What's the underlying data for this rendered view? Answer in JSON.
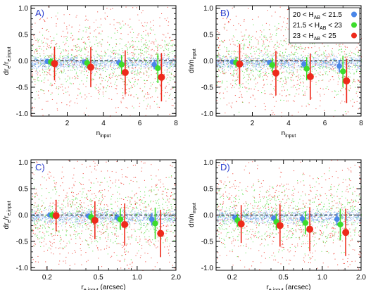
{
  "chart_data": [
    {
      "type": "scatter",
      "panel_label": "A)",
      "xscale": "linear",
      "xlim": [
        0,
        8
      ],
      "ylim": [
        -1.05,
        1.05
      ],
      "xticks": [
        2,
        4,
        6,
        8
      ],
      "xtick_labels": [
        "2",
        "4",
        "6",
        "8"
      ],
      "yticks": [
        -1.0,
        -0.5,
        0.0,
        0.5,
        1.0
      ],
      "ytick_labels": [
        "-1.0",
        "-0.5",
        "0.0",
        "0.5",
        "1.0"
      ],
      "xlabel": {
        "main": "n",
        "sub": "input",
        "tail": ""
      },
      "ylabel": {
        "main": "dr",
        "sub": "e",
        "mid": "/r",
        "sub2": "e,input"
      },
      "legend": false,
      "series": [
        {
          "key": "bright",
          "x": [
            0.9,
            2.95,
            4.85,
            6.8
          ],
          "y": [
            -0.01,
            -0.02,
            -0.03,
            -0.07
          ],
          "yerr": [
            0.03,
            0.04,
            0.06,
            0.09
          ]
        },
        {
          "key": "mid",
          "x": [
            1.1,
            3.1,
            5.0,
            7.0
          ],
          "y": [
            -0.02,
            -0.04,
            -0.07,
            -0.14
          ],
          "yerr": [
            0.08,
            0.1,
            0.18,
            0.28
          ]
        },
        {
          "key": "faint",
          "x": [
            1.3,
            3.3,
            5.2,
            7.2
          ],
          "y": [
            -0.05,
            -0.12,
            -0.22,
            -0.31
          ],
          "yerr": [
            0.32,
            0.38,
            0.42,
            0.46
          ]
        }
      ]
    },
    {
      "type": "scatter",
      "panel_label": "B)",
      "xscale": "linear",
      "xlim": [
        0,
        8
      ],
      "ylim": [
        -1.05,
        1.05
      ],
      "xticks": [
        2,
        4,
        6,
        8
      ],
      "xtick_labels": [
        "2",
        "4",
        "6",
        "8"
      ],
      "yticks": [
        -1.0,
        -0.5,
        0.0,
        0.5,
        1.0
      ],
      "ytick_labels": [
        "-1.0",
        "-0.5",
        "0.0",
        "0.5",
        "1.0"
      ],
      "xlabel": {
        "main": "n",
        "sub": "input",
        "tail": ""
      },
      "ylabel": {
        "main": "dn/n",
        "sub": "input",
        "mid": "",
        "sub2": ""
      },
      "legend": true,
      "series": [
        {
          "key": "bright",
          "x": [
            0.9,
            2.95,
            4.85,
            6.8
          ],
          "y": [
            -0.02,
            -0.03,
            -0.06,
            -0.1
          ],
          "yerr": [
            0.04,
            0.05,
            0.08,
            0.12
          ]
        },
        {
          "key": "mid",
          "x": [
            1.1,
            3.1,
            5.0,
            7.0
          ],
          "y": [
            -0.03,
            -0.08,
            -0.15,
            -0.2
          ],
          "yerr": [
            0.1,
            0.14,
            0.22,
            0.3
          ]
        },
        {
          "key": "faint",
          "x": [
            1.3,
            3.3,
            5.2,
            7.2
          ],
          "y": [
            -0.06,
            -0.23,
            -0.3,
            -0.38
          ],
          "yerr": [
            0.38,
            0.42,
            0.44,
            0.42
          ]
        }
      ]
    },
    {
      "type": "scatter",
      "panel_label": "C)",
      "xscale": "log",
      "xlim": [
        0.15,
        2.0
      ],
      "ylim": [
        -1.05,
        1.05
      ],
      "xticks": [
        0.2,
        0.5,
        1.0,
        2.0
      ],
      "xtick_labels": [
        "0.2",
        "0.5",
        "1.0",
        "2.0"
      ],
      "yticks": [
        -1.0,
        -0.5,
        0.0,
        0.5,
        1.0
      ],
      "ytick_labels": [
        "-1.0",
        "-0.5",
        "0.0",
        "0.5",
        "1.0"
      ],
      "xlabel": {
        "main": "r",
        "sub": "e,input",
        "tail": " (arcsec)"
      },
      "ylabel": {
        "main": "dr",
        "sub": "e",
        "mid": "/r",
        "sub2": "e,input"
      },
      "legend": false,
      "series": [
        {
          "key": "bright",
          "x": [
            0.21,
            0.42,
            0.7,
            1.3
          ],
          "y": [
            0.0,
            -0.02,
            -0.05,
            -0.08
          ],
          "yerr": [
            0.03,
            0.05,
            0.07,
            0.12
          ]
        },
        {
          "key": "mid",
          "x": [
            0.22,
            0.44,
            0.74,
            1.38
          ],
          "y": [
            0.0,
            -0.04,
            -0.08,
            -0.16
          ],
          "yerr": [
            0.07,
            0.12,
            0.2,
            0.3
          ]
        },
        {
          "key": "faint",
          "x": [
            0.235,
            0.47,
            0.8,
            1.52
          ],
          "y": [
            -0.01,
            -0.1,
            -0.18,
            -0.35
          ],
          "yerr": [
            0.3,
            0.36,
            0.4,
            0.45
          ]
        }
      ]
    },
    {
      "type": "scatter",
      "panel_label": "D)",
      "xscale": "log",
      "xlim": [
        0.15,
        2.0
      ],
      "ylim": [
        -1.05,
        1.05
      ],
      "xticks": [
        0.2,
        0.5,
        1.0,
        2.0
      ],
      "xtick_labels": [
        "0.2",
        "0.5",
        "1.0",
        "2.0"
      ],
      "yticks": [
        -1.0,
        -0.5,
        0.0,
        0.5,
        1.0
      ],
      "ytick_labels": [
        "-1.0",
        "-0.5",
        "0.0",
        "0.5",
        "1.0"
      ],
      "xlabel": {
        "main": "r",
        "sub": "e,input",
        "tail": " (arcsec)"
      },
      "ylabel": {
        "main": "dn/n",
        "sub": "input",
        "mid": "",
        "sub2": ""
      },
      "legend": false,
      "series": [
        {
          "key": "bright",
          "x": [
            0.21,
            0.42,
            0.7,
            1.3
          ],
          "y": [
            -0.05,
            -0.06,
            -0.07,
            -0.08
          ],
          "yerr": [
            0.05,
            0.06,
            0.08,
            0.12
          ]
        },
        {
          "key": "mid",
          "x": [
            0.22,
            0.44,
            0.74,
            1.38
          ],
          "y": [
            -0.1,
            -0.13,
            -0.15,
            -0.18
          ],
          "yerr": [
            0.12,
            0.16,
            0.22,
            0.3
          ]
        },
        {
          "key": "faint",
          "x": [
            0.235,
            0.47,
            0.8,
            1.52
          ],
          "y": [
            -0.17,
            -0.2,
            -0.27,
            -0.33
          ],
          "yerr": [
            0.36,
            0.4,
            0.42,
            0.45
          ]
        }
      ]
    }
  ],
  "legend": {
    "entries": [
      {
        "key": "bright",
        "lo": "20",
        "hi": "21.5",
        "color": "#4a86e8"
      },
      {
        "key": "mid",
        "lo": "21.5",
        "hi": "23",
        "color": "#3ddc2c"
      },
      {
        "key": "faint",
        "lo": "23",
        "hi": "25",
        "color": "#ee2a1b"
      }
    ],
    "var_main": "H",
    "var_sub": "AB"
  },
  "colors": {
    "bright": "#4a86e8",
    "mid": "#3ddc2c",
    "faint": "#ee2a1b",
    "panel_label": "#2a3fd0"
  }
}
